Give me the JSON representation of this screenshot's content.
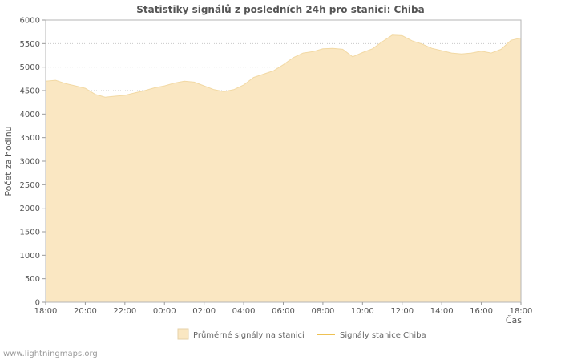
{
  "page": {
    "watermark": "www.lightningmaps.org"
  },
  "chart_data": {
    "type": "area",
    "title": "Statistiky signálů z posledních 24h pro stanici: Chiba",
    "xlabel": "Čas",
    "ylabel": "Počet za hodinu",
    "ylim": [
      0,
      6000
    ],
    "ytick_step": 500,
    "x_tick_labels": [
      "18:00",
      "20:00",
      "22:00",
      "00:00",
      "02:00",
      "04:00",
      "06:00",
      "08:00",
      "10:00",
      "12:00",
      "14:00",
      "16:00",
      "18:00"
    ],
    "sample_interval_minutes": 30,
    "grid": true,
    "legend_position": "bottom",
    "colors": {
      "area_fill": "#fae7c2",
      "area_edge": "#f2d9a4",
      "line": "#eec153",
      "grid": "#c9c9c9",
      "frame": "#b5b5b5",
      "axis_text": "#555555",
      "title_text": "#555555",
      "legend_text": "#666666",
      "watermark_text": "#999999"
    },
    "series": [
      {
        "name": "Průměrné signály na stanici",
        "type": "area",
        "color": "#fae7c2",
        "values": [
          4700,
          4720,
          4650,
          4600,
          4550,
          4420,
          4360,
          4380,
          4400,
          4450,
          4500,
          4560,
          4600,
          4660,
          4700,
          4680,
          4600,
          4520,
          4480,
          4520,
          4620,
          4780,
          4850,
          4920,
          5050,
          5200,
          5300,
          5330,
          5390,
          5400,
          5380,
          5220,
          5310,
          5390,
          5540,
          5680,
          5670,
          5560,
          5490,
          5400,
          5350,
          5300,
          5280,
          5300,
          5340,
          5300,
          5380,
          5570,
          5620
        ]
      },
      {
        "name": "Signály stanice Chiba",
        "type": "line",
        "color": "#eec153",
        "values": []
      }
    ]
  }
}
